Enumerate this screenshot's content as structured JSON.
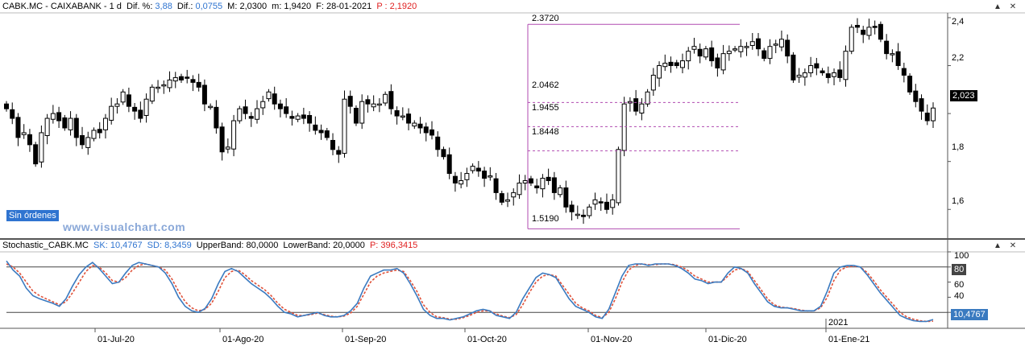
{
  "header": {
    "symbol": "CABK.MC - CAIXABANK - 1 d",
    "dif_pct_label": "Dif. %:",
    "dif_pct_value": "3,88",
    "dif_label": "Dif.:",
    "dif_value": "0,0755",
    "max_text": "M: 2,0300",
    "min_text": "m: 1,9420",
    "date_text": "F: 28-01-2021",
    "price_text": "P : 2,1920"
  },
  "osc_header": {
    "name": "Stochastic_CABK.MC",
    "sk": "SK: 10,4767",
    "sd": "SD: 8,3459",
    "upper": "UpperBand: 80,0000",
    "lower": "LowerBand: 20,0000",
    "p": "P: 396,3415"
  },
  "orders_label": "Sin órdenes",
  "watermark": "www.visualchart.com",
  "last_price_tag": "2,023",
  "osc_last_tag": "10,4767",
  "osc_band_tag": "80",
  "year_label": "2021",
  "fib_labels": [
    "2.3720",
    "2.0462",
    "1.9455",
    "1.8448",
    "1.5190"
  ],
  "buttons": {
    "up": "▲",
    "close": "✕"
  },
  "colors": {
    "fib": "#b04bb0",
    "sk": "#3a7ac0",
    "sd": "#e0523a",
    "candle": "#000000"
  },
  "chart_data": [
    {
      "type": "candlestick",
      "title": "CABK.MC - CAIXABANK - 1 d",
      "ylim": [
        1.48,
        2.42
      ],
      "yticks": [
        "2,4",
        "2,2",
        "2",
        "1,8",
        "1,6"
      ],
      "xticks": [
        "01-Jul-20",
        "01-Ago-20",
        "01-Sep-20",
        "01-Oct-20",
        "01-Nov-20",
        "01-Dic-20",
        "01-Ene-21"
      ],
      "fibonacci_levels": [
        2.372,
        2.0462,
        1.9455,
        1.8448,
        1.519
      ],
      "closes": [
        2.02,
        1.98,
        1.9,
        1.92,
        1.87,
        1.79,
        1.92,
        1.98,
        2.0,
        1.97,
        1.94,
        1.98,
        1.9,
        1.87,
        1.9,
        1.93,
        1.92,
        1.98,
        2.03,
        2.04,
        2.09,
        2.03,
        2.01,
        1.98,
        2.06,
        2.11,
        2.11,
        2.12,
        2.14,
        2.15,
        2.14,
        2.15,
        2.13,
        2.11,
        2.04,
        2.03,
        1.94,
        1.84,
        1.86,
        1.97,
        2.02,
        2.0,
        1.98,
        2.02,
        2.05,
        2.09,
        2.04,
        2.02,
        2.0,
        1.98,
        1.99,
        1.98,
        1.96,
        1.93,
        1.92,
        1.9,
        1.85,
        1.83,
        2.06,
        2.03,
        1.96,
        2.05,
        2.04,
        2.04,
        2.04,
        2.08,
        2.02,
        1.99,
        1.99,
        1.96,
        1.96,
        1.94,
        1.92,
        1.91,
        1.85,
        1.82,
        1.75,
        1.71,
        1.72,
        1.75,
        1.78,
        1.76,
        1.73,
        1.74,
        1.67,
        1.63,
        1.64,
        1.67,
        1.71,
        1.72,
        1.71,
        1.69,
        1.73,
        1.72,
        1.67,
        1.69,
        1.61,
        1.59,
        1.58,
        1.57,
        1.61,
        1.64,
        1.63,
        1.6,
        1.64,
        1.85,
        2.04,
        2.05,
        2.01,
        2.04,
        2.09,
        2.16,
        2.2,
        2.21,
        2.2,
        2.2,
        2.22,
        2.26,
        2.28,
        2.24,
        2.27,
        2.22,
        2.19,
        2.25,
        2.26,
        2.27,
        2.28,
        2.28,
        2.3,
        2.27,
        2.23,
        2.28,
        2.29,
        2.31,
        2.24,
        2.14,
        2.16,
        2.17,
        2.2,
        2.19,
        2.17,
        2.15,
        2.17,
        2.15,
        2.26,
        2.36,
        2.36,
        2.33,
        2.36,
        2.36,
        2.31,
        2.25,
        2.25,
        2.2,
        2.16,
        2.09,
        2.05,
        2.01,
        1.97,
        2.023
      ]
    },
    {
      "type": "line",
      "title": "Stochastic_CABK.MC",
      "ylim": [
        0,
        100
      ],
      "yticks": [
        "100",
        "80",
        "60",
        "40",
        "20"
      ],
      "bands": [
        80,
        20
      ],
      "series": [
        {
          "name": "SK",
          "values": [
            88,
            76,
            68,
            52,
            42,
            38,
            35,
            32,
            28,
            38,
            55,
            70,
            80,
            86,
            78,
            68,
            58,
            60,
            72,
            82,
            86,
            84,
            82,
            80,
            72,
            58,
            40,
            28,
            22,
            20,
            25,
            38,
            58,
            74,
            78,
            74,
            66,
            58,
            52,
            46,
            38,
            28,
            20,
            18,
            14,
            16,
            18,
            20,
            16,
            14,
            14,
            16,
            22,
            32,
            52,
            68,
            72,
            76,
            76,
            78,
            72,
            58,
            42,
            24,
            16,
            12,
            12,
            10,
            12,
            14,
            18,
            22,
            24,
            22,
            16,
            14,
            12,
            20,
            38,
            52,
            66,
            72,
            70,
            66,
            52,
            38,
            28,
            24,
            20,
            14,
            12,
            24,
            46,
            68,
            82,
            84,
            84,
            82,
            84,
            84,
            84,
            82,
            78,
            72,
            64,
            62,
            58,
            60,
            60,
            72,
            80,
            78,
            72,
            58,
            46,
            34,
            28,
            26,
            26,
            24,
            22,
            22,
            22,
            28,
            48,
            72,
            80,
            82,
            82,
            80,
            70,
            58,
            46,
            36,
            26,
            16,
            12,
            9,
            8,
            8,
            10.48
          ]
        },
        {
          "name": "SD",
          "values": [
            84,
            80,
            72,
            60,
            48,
            42,
            38,
            34,
            30,
            34,
            46,
            60,
            74,
            82,
            80,
            72,
            62,
            60,
            66,
            76,
            82,
            84,
            82,
            80,
            76,
            64,
            48,
            34,
            26,
            22,
            24,
            32,
            48,
            66,
            74,
            76,
            70,
            62,
            56,
            50,
            42,
            32,
            24,
            20,
            16,
            16,
            17,
            19,
            17,
            15,
            14,
            15,
            19,
            28,
            44,
            60,
            68,
            72,
            74,
            76,
            74,
            62,
            48,
            30,
            20,
            14,
            13,
            11,
            11,
            13,
            16,
            20,
            22,
            22,
            18,
            15,
            13,
            17,
            30,
            46,
            60,
            68,
            70,
            68,
            56,
            44,
            32,
            26,
            22,
            16,
            13,
            20,
            38,
            60,
            76,
            82,
            84,
            83,
            83,
            84,
            84,
            83,
            80,
            75,
            68,
            64,
            60,
            60,
            60,
            68,
            76,
            78,
            74,
            62,
            50,
            38,
            30,
            27,
            26,
            25,
            23,
            22,
            22,
            26,
            40,
            62,
            76,
            80,
            81,
            80,
            73,
            62,
            50,
            40,
            30,
            20,
            14,
            11,
            9,
            8,
            8.35
          ]
        }
      ]
    }
  ]
}
